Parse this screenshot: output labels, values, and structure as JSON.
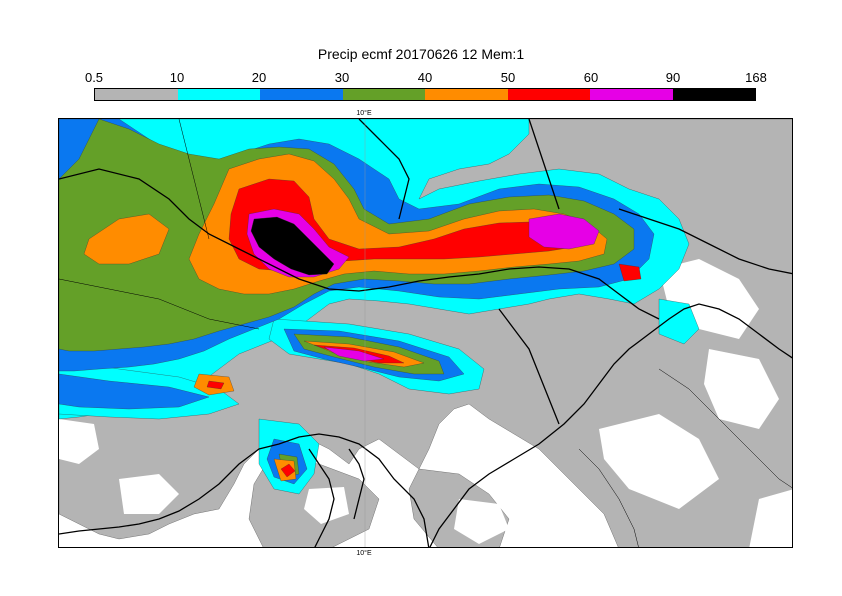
{
  "title": "Precip ecmf 20170626 12 Mem:1",
  "colorbar": {
    "ticks": [
      "0.5",
      "10",
      "20",
      "30",
      "40",
      "50",
      "60",
      "90",
      "168"
    ],
    "colors": [
      "#b4b4b4",
      "#00ffff",
      "#0a78f0",
      "#64a028",
      "#ff8c00",
      "#ff0000",
      "#e600e6",
      "#000000"
    ]
  },
  "map": {
    "lon_label_top": "10°E",
    "lon_label_bottom": "10°E",
    "background_color": "#ffffff",
    "land_outline_color": "#000000"
  }
}
